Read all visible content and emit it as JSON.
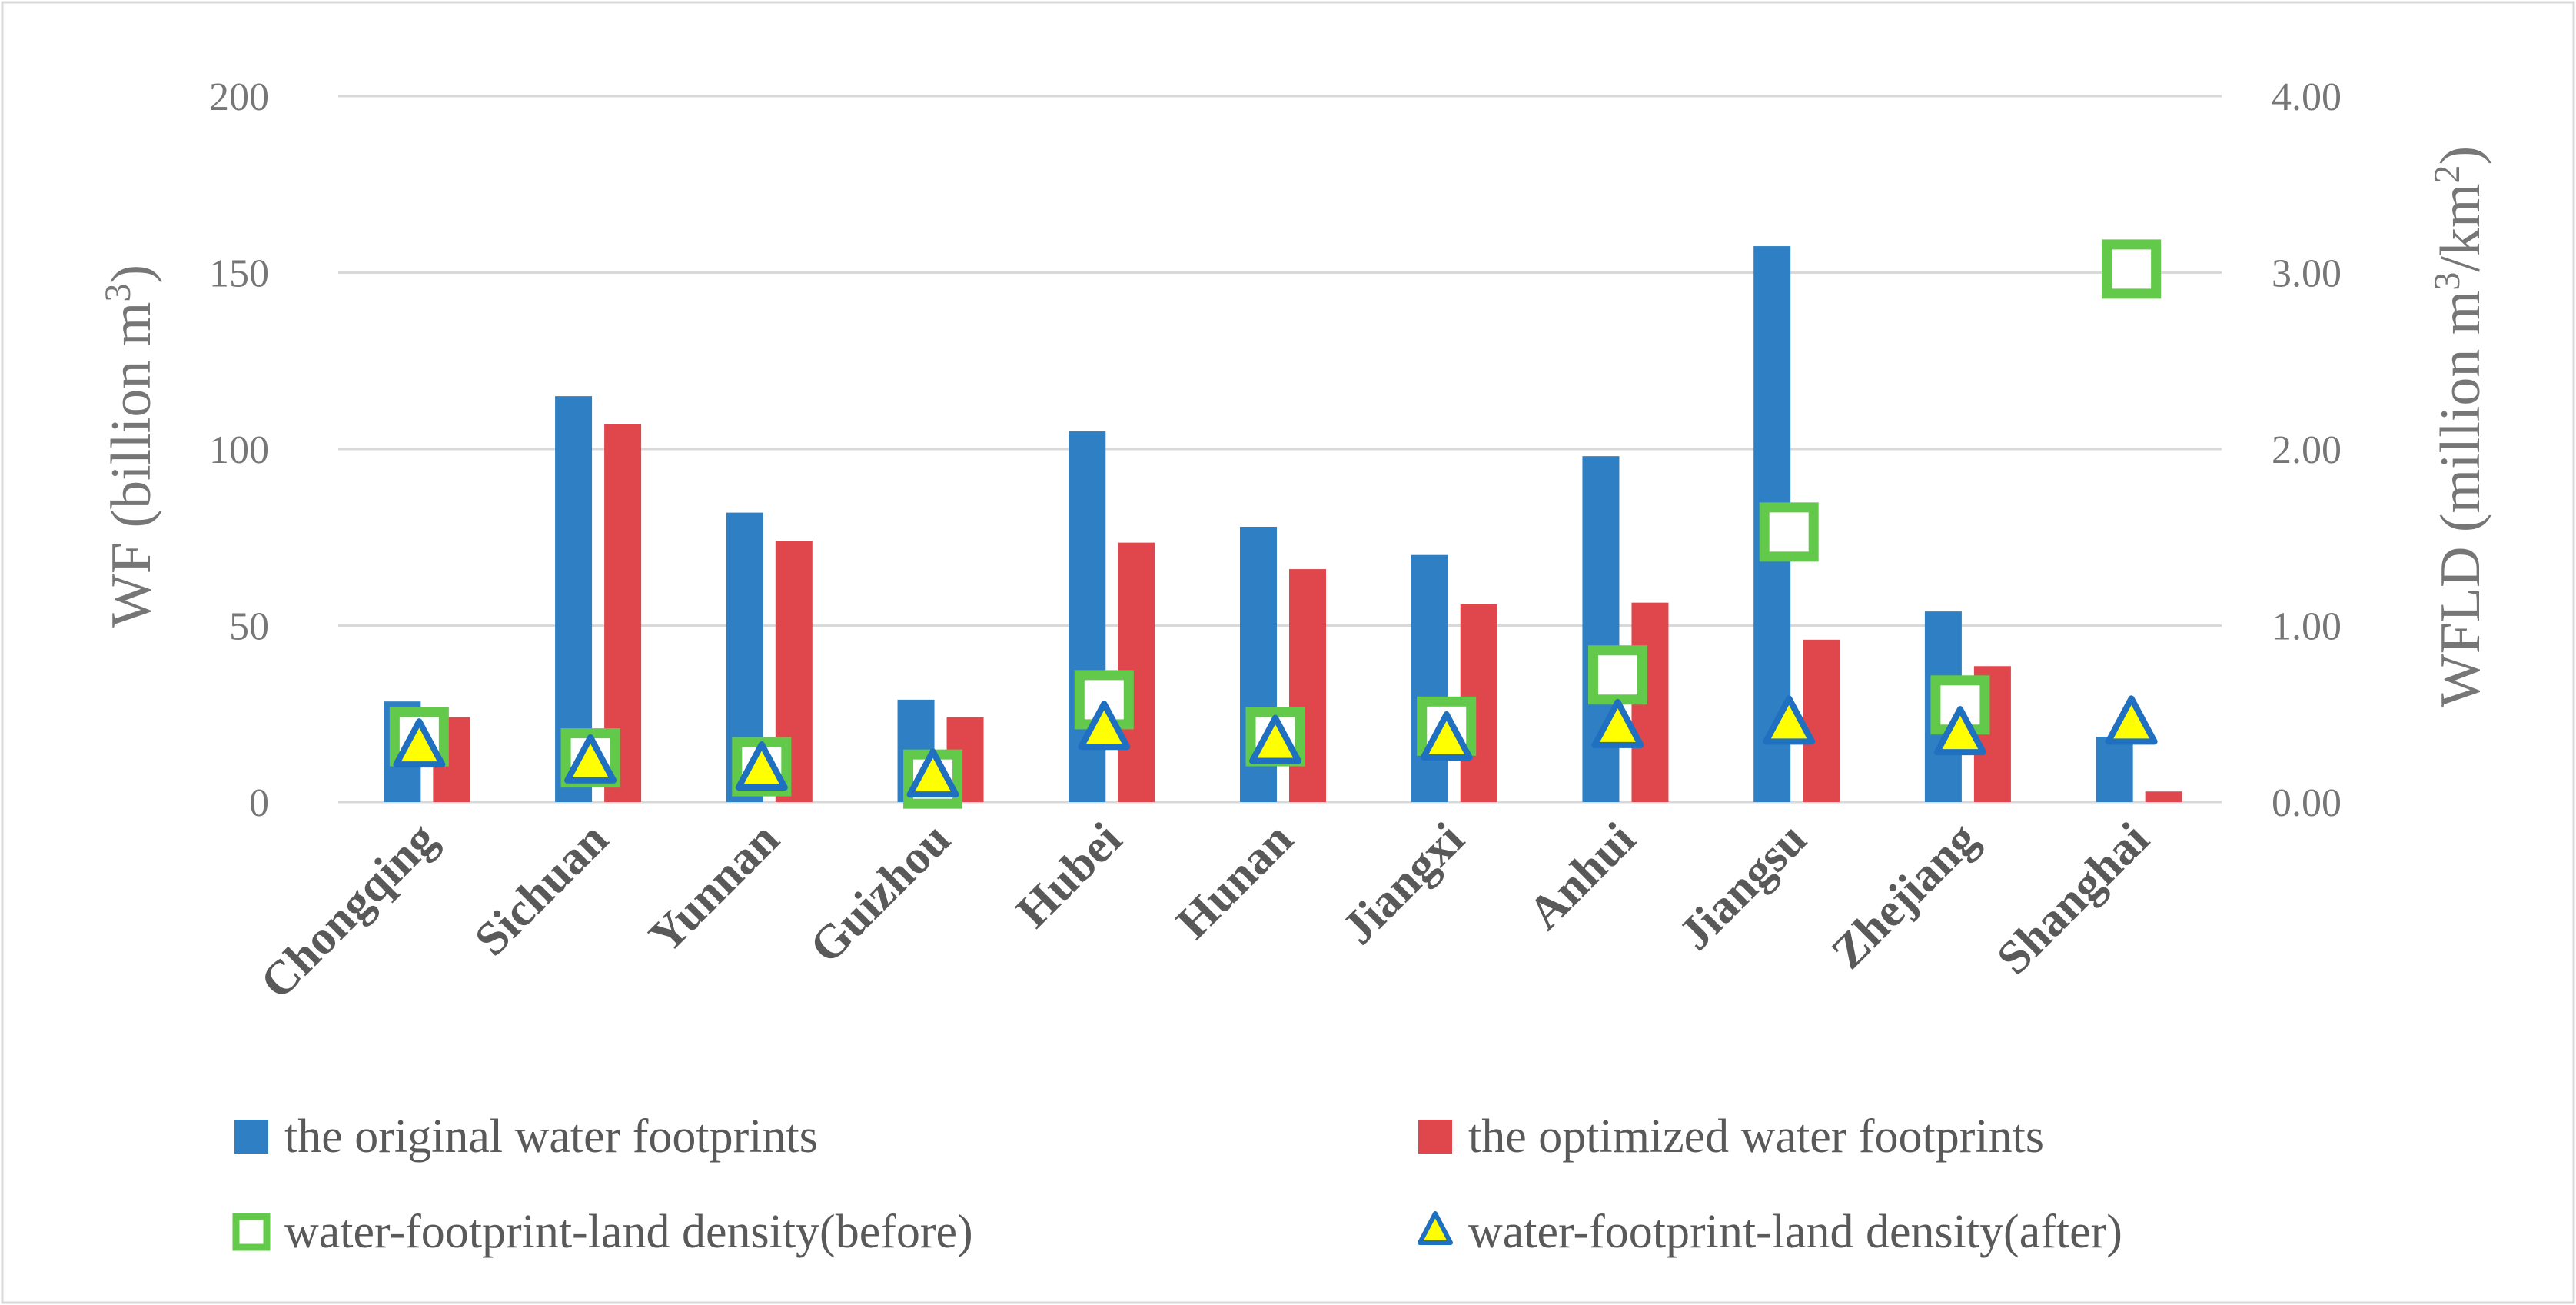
{
  "chart_data": {
    "type": "bar",
    "categories": [
      "Chongqing",
      "Sichuan",
      "Yunnan",
      "Guizhou",
      "Hubei",
      "Hunan",
      "Jiangxi",
      "Anhui",
      "Jiangsu",
      "Zhejiang",
      "Shanghai"
    ],
    "series": [
      {
        "name": "the original water footprints",
        "kind": "bar",
        "axis": "left",
        "color": "#2E7FC3",
        "values": [
          28.5,
          115,
          82,
          29,
          105,
          78,
          70,
          98,
          157.5,
          54,
          18.5
        ]
      },
      {
        "name": "the optimized water footprints",
        "kind": "bar",
        "axis": "left",
        "color": "#E0474C",
        "values": [
          24,
          107,
          74,
          24,
          73.5,
          66,
          56,
          56.5,
          46,
          38.5,
          3
        ]
      },
      {
        "name": "water-footprint-land density(before)",
        "kind": "marker",
        "marker": "square",
        "axis": "right",
        "color": "#63C94A",
        "values": [
          0.37,
          0.25,
          0.2,
          0.13,
          0.58,
          0.37,
          0.43,
          0.72,
          1.53,
          0.55,
          3.02
        ]
      },
      {
        "name": "water-footprint-land density(after)",
        "kind": "marker",
        "marker": "triangle",
        "axis": "right",
        "color": "#FFFF00",
        "edge_color": "#1F70C1",
        "values": [
          0.3,
          0.21,
          0.17,
          0.13,
          0.4,
          0.32,
          0.34,
          0.41,
          0.43,
          0.37,
          0.43
        ]
      }
    ],
    "y_left": {
      "label": "WF (billion m",
      "label_sup": "3",
      "label_end": ")",
      "ylim": [
        0,
        200
      ],
      "ticks": [
        0,
        50,
        100,
        150,
        200
      ],
      "tick_labels": [
        "0",
        "50",
        "100",
        "150",
        "200"
      ]
    },
    "y_right": {
      "label": "WFLD (million m",
      "label_sup1": "3",
      "label_mid": "/km",
      "label_sup2": "2",
      "label_end": ")",
      "ylim": [
        0,
        4
      ],
      "ticks": [
        0,
        1,
        2,
        3,
        4
      ],
      "tick_labels": [
        "0.00",
        "1.00",
        "2.00",
        "3.00",
        "4.00"
      ]
    },
    "grid": "horizontal",
    "legend_position": "bottom",
    "title": ""
  }
}
